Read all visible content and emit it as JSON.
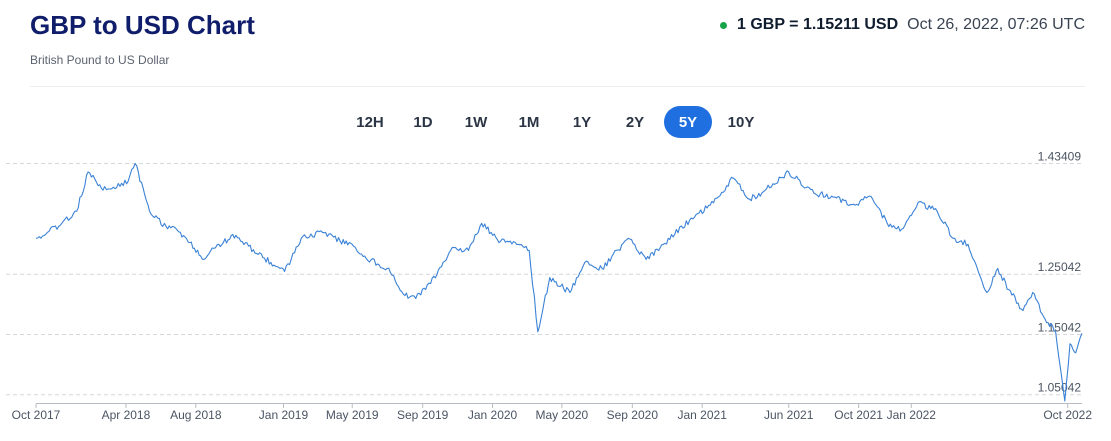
{
  "header": {
    "title": "GBP to USD Chart",
    "subtitle": "British Pound to US Dollar",
    "rate": "1 GBP = 1.15211 USD",
    "timestamp": "Oct 26, 2022, 07:26 UTC",
    "live_color": "#16a34a"
  },
  "ranges": {
    "r12h": "12H",
    "r1d": "1D",
    "r1w": "1W",
    "r1m": "1M",
    "r1y": "1Y",
    "r2y": "2Y",
    "r5y": "5Y",
    "r10y": "10Y",
    "selected": "5Y"
  },
  "colors": {
    "line": "#3b82d6",
    "accent": "#1f6fe0",
    "title": "#0f1d6b"
  },
  "chart_data": {
    "type": "line",
    "title": "",
    "xlabel": "",
    "ylabel": "",
    "grid": true,
    "ylim": [
      1.035,
      1.44
    ],
    "xlim": [
      "2017-10-26",
      "2022-10-26"
    ],
    "y_ticks": [
      "1.43409",
      "1.25042",
      "1.15042",
      "1.05042"
    ],
    "x_ticks": [
      {
        "label": "Oct 2017",
        "date": "2017-10-26"
      },
      {
        "label": "Apr 2018",
        "date": "2018-04-01"
      },
      {
        "label": "Aug 2018",
        "date": "2018-08-01"
      },
      {
        "label": "Jan 2019",
        "date": "2019-01-01"
      },
      {
        "label": "May 2019",
        "date": "2019-05-01"
      },
      {
        "label": "Sep 2019",
        "date": "2019-09-01"
      },
      {
        "label": "Jan 2020",
        "date": "2020-01-01"
      },
      {
        "label": "May 2020",
        "date": "2020-05-01"
      },
      {
        "label": "Sep 2020",
        "date": "2020-09-01"
      },
      {
        "label": "Jan 2021",
        "date": "2021-01-01"
      },
      {
        "label": "Jun 2021",
        "date": "2021-06-01"
      },
      {
        "label": "Oct 2021",
        "date": "2021-10-01"
      },
      {
        "label": "Jan 2022",
        "date": "2022-01-01"
      },
      {
        "label": "Oct 2022",
        "date": "2022-10-01"
      }
    ],
    "series": [
      {
        "values": [
          [
            "2017-10-26",
            1.31
          ],
          [
            "2017-11-15",
            1.32
          ],
          [
            "2017-12-10",
            1.335
          ],
          [
            "2018-01-05",
            1.355
          ],
          [
            "2018-01-25",
            1.42
          ],
          [
            "2018-02-20",
            1.39
          ],
          [
            "2018-03-10",
            1.395
          ],
          [
            "2018-04-05",
            1.405
          ],
          [
            "2018-04-17",
            1.434
          ],
          [
            "2018-05-15",
            1.35
          ],
          [
            "2018-06-10",
            1.33
          ],
          [
            "2018-07-05",
            1.32
          ],
          [
            "2018-08-15",
            1.275
          ],
          [
            "2018-09-10",
            1.3
          ],
          [
            "2018-10-10",
            1.315
          ],
          [
            "2018-11-15",
            1.285
          ],
          [
            "2018-12-10",
            1.27
          ],
          [
            "2019-01-03",
            1.255
          ],
          [
            "2019-02-01",
            1.31
          ],
          [
            "2019-03-10",
            1.32
          ],
          [
            "2019-04-10",
            1.305
          ],
          [
            "2019-05-01",
            1.3
          ],
          [
            "2019-05-20",
            1.28
          ],
          [
            "2019-07-01",
            1.26
          ],
          [
            "2019-08-01",
            1.215
          ],
          [
            "2019-08-20",
            1.21
          ],
          [
            "2019-09-15",
            1.235
          ],
          [
            "2019-10-20",
            1.29
          ],
          [
            "2019-11-20",
            1.29
          ],
          [
            "2019-12-13",
            1.335
          ],
          [
            "2020-01-15",
            1.305
          ],
          [
            "2020-02-15",
            1.3
          ],
          [
            "2020-03-05",
            1.29
          ],
          [
            "2020-03-20",
            1.155
          ],
          [
            "2020-04-10",
            1.245
          ],
          [
            "2020-05-15",
            1.22
          ],
          [
            "2020-06-10",
            1.27
          ],
          [
            "2020-07-10",
            1.26
          ],
          [
            "2020-08-25",
            1.31
          ],
          [
            "2020-09-25",
            1.275
          ],
          [
            "2020-10-25",
            1.3
          ],
          [
            "2020-12-10",
            1.34
          ],
          [
            "2021-01-15",
            1.365
          ],
          [
            "2021-02-24",
            1.41
          ],
          [
            "2021-03-25",
            1.375
          ],
          [
            "2021-04-15",
            1.385
          ],
          [
            "2021-06-01",
            1.42
          ],
          [
            "2021-07-15",
            1.385
          ],
          [
            "2021-08-15",
            1.38
          ],
          [
            "2021-09-25",
            1.365
          ],
          [
            "2021-10-20",
            1.38
          ],
          [
            "2021-11-20",
            1.335
          ],
          [
            "2021-12-15",
            1.325
          ],
          [
            "2022-01-13",
            1.37
          ],
          [
            "2022-02-15",
            1.355
          ],
          [
            "2022-03-15",
            1.31
          ],
          [
            "2022-04-10",
            1.3
          ],
          [
            "2022-05-13",
            1.22
          ],
          [
            "2022-06-01",
            1.26
          ],
          [
            "2022-06-20",
            1.225
          ],
          [
            "2022-07-15",
            1.19
          ],
          [
            "2022-08-01",
            1.22
          ],
          [
            "2022-08-20",
            1.18
          ],
          [
            "2022-09-10",
            1.155
          ],
          [
            "2022-09-26",
            1.04
          ],
          [
            "2022-10-05",
            1.135
          ],
          [
            "2022-10-15",
            1.12
          ],
          [
            "2022-10-26",
            1.15211
          ]
        ]
      }
    ]
  }
}
